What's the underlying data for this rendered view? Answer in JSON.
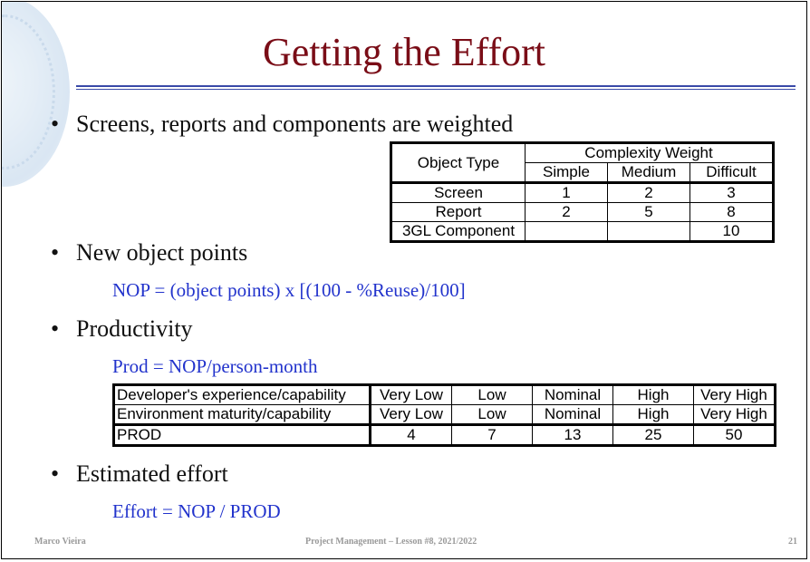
{
  "slide": {
    "title": "Getting the Effort"
  },
  "bullets": [
    {
      "text": "Screens, reports and components are weighted"
    },
    {
      "text": "New object points"
    },
    {
      "text": "Productivity"
    },
    {
      "text": "Estimated effort"
    }
  ],
  "weight_table": {
    "header_object": "Object Type",
    "header_group": "Complexity Weight",
    "levels": [
      "Simple",
      "Medium",
      "Difficult"
    ],
    "rows": [
      {
        "label": "Screen",
        "values": [
          "1",
          "2",
          "3"
        ]
      },
      {
        "label": "Report",
        "values": [
          "2",
          "5",
          "8"
        ]
      },
      {
        "label": "3GL Component",
        "values": [
          "",
          "",
          "10"
        ]
      }
    ]
  },
  "formulas": {
    "nop": "NOP = (object points) x [(100 - %Reuse)/100]",
    "prod": "Prod = NOP/person-month",
    "effort": "Effort = NOP / PROD"
  },
  "prod_table": {
    "rows": [
      {
        "label": "Developer's experience/capability",
        "values": [
          "Very Low",
          "Low",
          "Nominal",
          "High",
          "Very High"
        ]
      },
      {
        "label": "Environment maturity/capability",
        "values": [
          "Very Low",
          "Low",
          "Nominal",
          "High",
          "Very High"
        ]
      },
      {
        "label": "PROD",
        "values": [
          "4",
          "7",
          "13",
          "25",
          "50"
        ]
      }
    ]
  },
  "footer": {
    "author": "Marco Vieira",
    "course": "Project Management – Lesson #8, 2021/2022",
    "page": "21"
  },
  "colors": {
    "title": "#7a0d17",
    "formula": "#2233cc",
    "rule": "#3a4aa8"
  }
}
